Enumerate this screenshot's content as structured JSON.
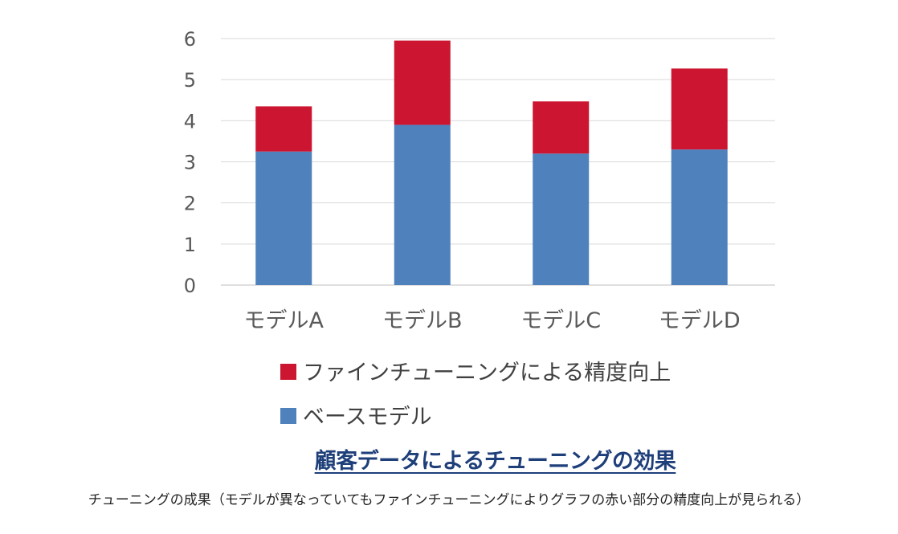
{
  "chart_data": {
    "type": "bar",
    "stacked": true,
    "title": "顧客データによるチューニングの効果",
    "categories": [
      "モデルA",
      "モデルB",
      "モデルC",
      "モデルD"
    ],
    "series": [
      {
        "name": "ベースモデル",
        "color": "#4f81bd",
        "values": [
          3.25,
          3.9,
          3.2,
          3.3
        ]
      },
      {
        "name": "ファインチューニングによる精度向上",
        "color": "#cc1530",
        "values": [
          1.1,
          2.05,
          1.27,
          1.97
        ]
      }
    ],
    "ylim": [
      0,
      6
    ],
    "yticks": [
      "0",
      "1",
      "2",
      "3",
      "4",
      "5",
      "6"
    ],
    "grid": true,
    "legend_position": "bottom",
    "legend_order": [
      1,
      0
    ]
  },
  "caption": "チューニングの成果（モデルが異なっていてもファインチューニングによりグラフの赤い部分の精度向上が見られる）"
}
